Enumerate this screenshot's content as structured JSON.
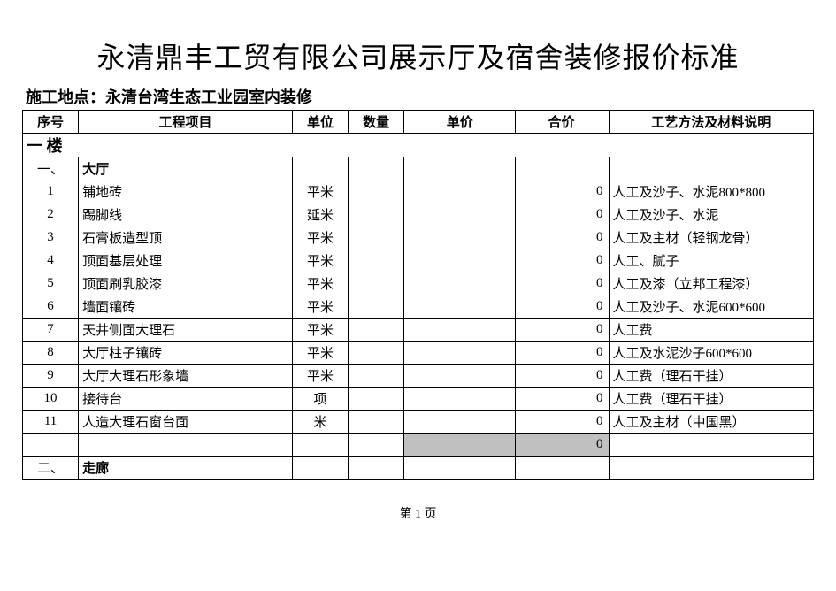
{
  "doc": {
    "title": "永清鼎丰工贸有限公司展示厅及宿舍装修报价标准",
    "location_line": "施工地点：永清台湾生态工业园室内装修",
    "footer": "第 1 页"
  },
  "headers": {
    "seq": "序号",
    "item": "工程项目",
    "unit": "单位",
    "qty": "数量",
    "price": "单价",
    "total": "合价",
    "note": "工艺方法及材料说明"
  },
  "floor_row": {
    "label": "一 楼"
  },
  "sections": {
    "s1": {
      "seq": "一、",
      "name": "大厅"
    },
    "s2": {
      "seq": "二、",
      "name": "走廊"
    }
  },
  "rows": {
    "r1": {
      "seq": "1",
      "item": "铺地砖",
      "unit": "平米",
      "total": "0",
      "note": "人工及沙子、水泥800*800"
    },
    "r2": {
      "seq": "2",
      "item": "踢脚线",
      "unit": "延米",
      "total": "0",
      "note": "人工及沙子、水泥"
    },
    "r3": {
      "seq": "3",
      "item": "石膏板造型顶",
      "unit": "平米",
      "total": "0",
      "note": "人工及主材（轻钢龙骨）"
    },
    "r4": {
      "seq": "4",
      "item": "顶面基层处理",
      "unit": "平米",
      "total": "0",
      "note": "人工、腻子"
    },
    "r5": {
      "seq": "5",
      "item": "顶面刷乳胶漆",
      "unit": "平米",
      "total": "0",
      "note": "人工及漆（立邦工程漆）"
    },
    "r6": {
      "seq": "6",
      "item": "墙面镶砖",
      "unit": "平米",
      "total": "0",
      "note": "人工及沙子、水泥600*600"
    },
    "r7": {
      "seq": "7",
      "item": "天井侧面大理石",
      "unit": "平米",
      "total": "0",
      "note": "人工费"
    },
    "r8": {
      "seq": "8",
      "item": "大厅柱子镶砖",
      "unit": "平米",
      "total": "0",
      "note": "人工及水泥沙子600*600"
    },
    "r9": {
      "seq": "9",
      "item": "大厅大理石形象墙",
      "unit": "平米",
      "total": "0",
      "note": "人工费（理石干挂）"
    },
    "r10": {
      "seq": "10",
      "item": "接待台",
      "unit": "项",
      "total": "0",
      "note": "人工费（理石干挂）"
    },
    "r11": {
      "seq": "11",
      "item": "人造大理石窗台面",
      "unit": "米",
      "total": "0",
      "note": "人工及主材（中国黑）"
    }
  },
  "subtotal": {
    "total": "0"
  },
  "style": {
    "shaded_bg": "#c0c0c0",
    "border_color": "#000000",
    "title_fontsize": 32,
    "body_fontsize": 15
  }
}
